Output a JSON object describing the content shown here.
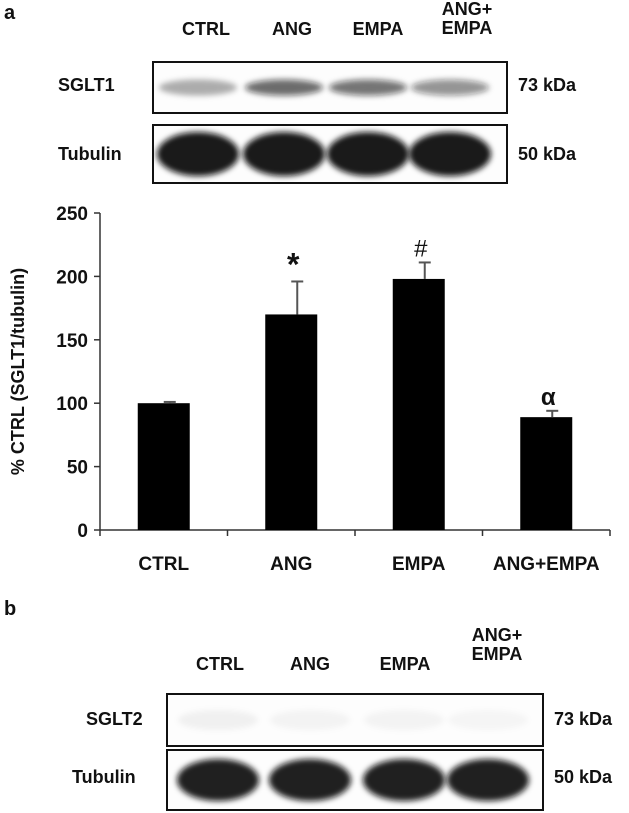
{
  "panels": {
    "a": {
      "letter": "a",
      "lanes": [
        {
          "name": "CTRL"
        },
        {
          "name": "ANG"
        },
        {
          "name": "EMPA"
        },
        {
          "name": "ANG+\nEMPA"
        }
      ],
      "blots": [
        {
          "label": "SGLT1",
          "kda": "73 kDa",
          "intensity": [
            0.32,
            0.62,
            0.58,
            0.45
          ]
        },
        {
          "label": "Tubulin",
          "kda": "50 kDa",
          "intensity": [
            0.95,
            0.95,
            0.95,
            0.95
          ]
        }
      ]
    },
    "b": {
      "letter": "b",
      "lanes": [
        {
          "name": "CTRL"
        },
        {
          "name": "ANG"
        },
        {
          "name": "EMPA"
        },
        {
          "name": "ANG+\nEMPA"
        }
      ],
      "blots": [
        {
          "label": "SGLT2",
          "kda": "73 kDa",
          "intensity": [
            0.05,
            0.04,
            0.04,
            0.03
          ]
        },
        {
          "label": "Tubulin",
          "kda": "50 kDa",
          "intensity": [
            0.92,
            0.92,
            0.92,
            0.92
          ]
        }
      ]
    }
  },
  "chart_data": {
    "type": "bar",
    "categories": [
      "CTRL",
      "ANG",
      "EMPA",
      "ANG+EMPA"
    ],
    "values": [
      100,
      170,
      198,
      89
    ],
    "errors": [
      1,
      26,
      13,
      5
    ],
    "annotations": [
      "",
      "*",
      "#",
      "α"
    ],
    "title": "",
    "xlabel": "",
    "ylabel": "% CTRL (SGLT1/tubulin)",
    "ylim": [
      0,
      250
    ],
    "yticks": [
      "0",
      "50",
      "100",
      "150",
      "200",
      "250"
    ],
    "ytick_values": [
      0,
      50,
      100,
      150,
      200,
      250
    ],
    "grid": false,
    "bar_color": "#000000"
  }
}
